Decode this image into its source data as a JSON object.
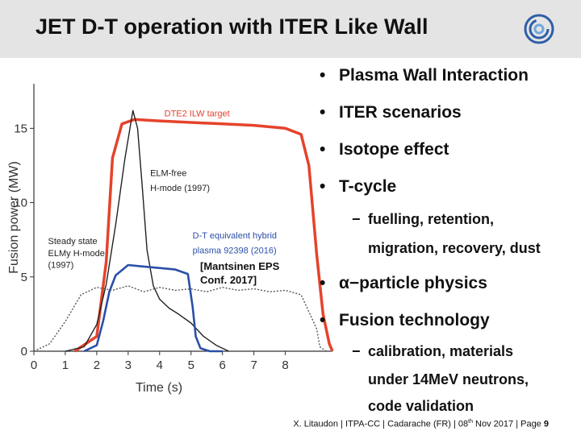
{
  "header": {
    "title": "JET D-T operation with ITER Like Wall",
    "logo_icon": "eurofusion-logo-icon"
  },
  "bullets": [
    {
      "level": 1,
      "marker": "•",
      "text": "Plasma Wall Interaction"
    },
    {
      "level": 1,
      "marker": "•",
      "text": "ITER scenarios"
    },
    {
      "level": 1,
      "marker": "•",
      "text": "Isotope effect"
    },
    {
      "level": 1,
      "marker": "•",
      "text": "T-cycle"
    },
    {
      "level": 2,
      "marker": "−",
      "text": "fuelling, retention,"
    },
    {
      "level": 2,
      "marker": "",
      "text": "migration, recovery, dust"
    },
    {
      "level": 1,
      "marker": "•",
      "text": "α−particle physics"
    },
    {
      "level": 1,
      "marker": "•",
      "text": "Fusion technology"
    },
    {
      "level": 2,
      "marker": "−",
      "text": "calibration, materials"
    },
    {
      "level": 2,
      "marker": "",
      "text": "under 14MeV neutrons,"
    },
    {
      "level": 2,
      "marker": "",
      "text": "code validation"
    }
  ],
  "reference": {
    "line1": "[Mantsinen EPS",
    "line2": "Conf. 2017]"
  },
  "footer": {
    "text": "X. Litaudon | ITPA-CC | Cadarache (FR) | 08",
    "sup": "th",
    "text2": " Nov 2017 | Page ",
    "page": "9"
  },
  "chart_data": {
    "type": "line",
    "xlabel": "Time (s)",
    "ylabel": "Fusion power (MW)",
    "xlim": [
      0,
      9.5
    ],
    "ylim": [
      0,
      18
    ],
    "x_ticks": [
      "0",
      "1",
      "2",
      "3",
      "4",
      "5",
      "6",
      "7",
      "8"
    ],
    "y_ticks": [
      "0",
      "5",
      "10",
      "15"
    ],
    "grid": false,
    "series": [
      {
        "name": "DTE2 ILW target",
        "color": "#e5432b",
        "x": [
          1.3,
          2.0,
          2.3,
          2.5,
          2.8,
          3.2,
          4.0,
          5.0,
          6.0,
          7.0,
          8.0,
          8.5,
          8.75,
          9.0,
          9.2,
          9.4,
          9.5
        ],
        "y": [
          0,
          1,
          6,
          13,
          15.3,
          15.6,
          15.5,
          15.4,
          15.3,
          15.2,
          15.0,
          14.6,
          12.5,
          6.5,
          2.5,
          0.5,
          0
        ]
      },
      {
        "name": "ELM-free H-mode (1997)",
        "color": "#222222",
        "x": [
          1.0,
          1.6,
          2.0,
          2.3,
          2.6,
          2.9,
          3.15,
          3.3,
          3.45,
          3.6,
          3.8,
          4.0,
          4.3,
          4.6,
          5.0,
          5.4,
          5.8,
          6.2
        ],
        "y": [
          0,
          0.3,
          1.8,
          4.5,
          8.5,
          13.0,
          16.2,
          15.0,
          11.0,
          6.8,
          4.4,
          3.5,
          2.9,
          2.5,
          1.9,
          1.0,
          0.4,
          0
        ]
      },
      {
        "name": "D-T equivalent hybrid plasma 92398 (2016)",
        "color": "#2b4fa8",
        "x": [
          1.6,
          2.0,
          2.2,
          2.4,
          2.6,
          3.0,
          3.5,
          4.0,
          4.5,
          4.9,
          5.05,
          5.15,
          5.3,
          5.6,
          6.0
        ],
        "y": [
          0,
          0.4,
          2.0,
          4.0,
          5.1,
          5.8,
          5.7,
          5.6,
          5.5,
          5.2,
          3.0,
          1.0,
          0.2,
          0,
          0
        ]
      },
      {
        "name": "Steady state ELMy H-mode (1997)",
        "color": "#555555",
        "x": [
          0,
          0.5,
          1.0,
          1.5,
          2.0,
          2.5,
          3.0,
          3.5,
          4.0,
          4.5,
          5.0,
          5.5,
          6.0,
          6.5,
          7.0,
          7.5,
          8.0,
          8.5,
          9.0,
          9.1,
          9.3
        ],
        "y": [
          0,
          0.5,
          2.0,
          3.8,
          4.3,
          4.1,
          4.4,
          4.0,
          4.3,
          4.1,
          4.2,
          4.0,
          4.3,
          4.1,
          4.2,
          4.0,
          4.1,
          3.8,
          1.5,
          0.3,
          0
        ]
      }
    ],
    "annotations": [
      {
        "text": "DTE2 ILW target",
        "x": 4.15,
        "y": 15.8,
        "color": "#e5432b"
      },
      {
        "text": "ELM-free",
        "x": 3.7,
        "y": 11.8,
        "color": "#222222"
      },
      {
        "text": "H-mode (1997)",
        "x": 3.7,
        "y": 10.8,
        "color": "#222222"
      },
      {
        "text": "D-T equivalent hybrid",
        "x": 5.05,
        "y": 7.6,
        "color": "#2b4fa8"
      },
      {
        "text": "plasma 92398 (2016)",
        "x": 5.05,
        "y": 6.6,
        "color": "#2b4fa8"
      },
      {
        "text": "Steady state",
        "x": 0.45,
        "y": 7.2,
        "color": "#222222"
      },
      {
        "text": "ELMy H-mode",
        "x": 0.45,
        "y": 6.4,
        "color": "#222222"
      },
      {
        "text": "(1997)",
        "x": 0.45,
        "y": 5.6,
        "color": "#222222"
      }
    ]
  }
}
